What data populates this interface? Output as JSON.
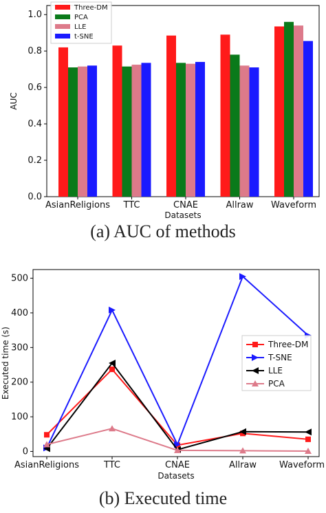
{
  "charts": [
    {
      "type": "bar",
      "caption": "(a) AUC of methods",
      "xlabel": "Datasets",
      "ylabel": "AUC",
      "categories": [
        "AsianReligions",
        "TTC",
        "CNAE",
        "Allraw",
        "Waveform"
      ],
      "yticks": [
        "0.0",
        "0.2",
        "0.4",
        "0.6",
        "0.8",
        "1.0"
      ],
      "ylim": [
        0,
        1.05
      ],
      "legend_position": "top-left",
      "series": [
        {
          "name": "Three-DM",
          "color": "#ff1a1a",
          "values": [
            0.82,
            0.83,
            0.885,
            0.89,
            0.935
          ]
        },
        {
          "name": "PCA",
          "color": "#0a7a1a",
          "values": [
            0.71,
            0.715,
            0.735,
            0.78,
            0.96
          ]
        },
        {
          "name": "LLE",
          "color": "#dd7a8a",
          "values": [
            0.715,
            0.725,
            0.73,
            0.72,
            0.94
          ]
        },
        {
          "name": "t-SNE",
          "color": "#1a1aff",
          "values": [
            0.72,
            0.735,
            0.74,
            0.71,
            0.855
          ]
        }
      ]
    },
    {
      "type": "line",
      "caption": "(b) Executed time",
      "xlabel": "Datasets",
      "ylabel": "Executed time (s)",
      "categories": [
        "AsianReligions",
        "TTC",
        "CNAE",
        "Allraw",
        "Waveform"
      ],
      "yticks": [
        "0",
        "100",
        "200",
        "300",
        "400",
        "500"
      ],
      "ylim": [
        -15,
        525
      ],
      "legend_position": "center-right",
      "series": [
        {
          "name": "Three-DM",
          "color": "#ff1a1a",
          "marker": "square",
          "values": [
            48,
            237,
            18,
            52,
            35
          ]
        },
        {
          "name": "T-SNE",
          "color": "#1a1aff",
          "marker": "triangle-right",
          "values": [
            10,
            408,
            20,
            505,
            335
          ]
        },
        {
          "name": "LLE",
          "color": "#000000",
          "marker": "triangle-left",
          "values": [
            8,
            255,
            5,
            57,
            56
          ]
        },
        {
          "name": "PCA",
          "color": "#dd7a8a",
          "marker": "triangle-up",
          "values": [
            20,
            66,
            3,
            2,
            1
          ]
        }
      ]
    }
  ]
}
